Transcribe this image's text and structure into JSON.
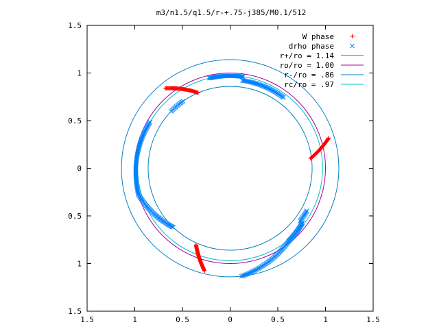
{
  "chart_data": {
    "type": "scatter",
    "title": "m3/n1.5/q1.5/r-+.75-j385/M0.1/512",
    "xlabel": "",
    "ylabel": "",
    "xlim": [
      -1.5,
      1.5
    ],
    "ylim": [
      -1.5,
      1.5
    ],
    "xtick_labels": [
      "1.5",
      "1",
      "0.5",
      "0",
      "0.5",
      "1",
      "1.5"
    ],
    "xtick_values": [
      -1.5,
      -1,
      -0.5,
      0,
      0.5,
      1,
      1.5
    ],
    "ytick_labels": [
      "1.5",
      "1",
      "0.5",
      "0",
      "0.5",
      "1",
      "1.5"
    ],
    "ytick_values": [
      1.5,
      1,
      0.5,
      0,
      -0.5,
      -1,
      -1.5
    ],
    "grid": false,
    "legend_position": "top-right",
    "colors": {
      "w_phase": "#ff0000",
      "drho_phase": "#0080ff",
      "r_plus": "#0080c0",
      "ro": "#a000a0",
      "r_minus": "#0080c0",
      "rc": "#00c0c0"
    },
    "circles": [
      {
        "label": "r+/ro = 1.14",
        "radius": 1.14,
        "color_key": "r_plus"
      },
      {
        "label": "ro/ro = 1.00",
        "radius": 1.0,
        "color_key": "ro"
      },
      {
        "label": "r-/ro = .86",
        "radius": 0.86,
        "color_key": "r_minus"
      },
      {
        "label": "rc/ro = .97",
        "radius": 0.97,
        "color_key": "rc"
      }
    ],
    "series": [
      {
        "name": "W phase",
        "marker": "+",
        "color_key": "w_phase",
        "arcs": [
          {
            "r0": 0.85,
            "r1": 1.08,
            "a0": 7,
            "a1": 17,
            "n": 45
          },
          {
            "r0": 0.86,
            "r1": 1.08,
            "a0": 113,
            "a1": 129,
            "n": 50
          },
          {
            "r0": 0.88,
            "r1": 1.11,
            "a0": 246,
            "a1": 256,
            "n": 45
          }
        ]
      },
      {
        "name": "drho phase",
        "marker": "x",
        "color_key": "drho_phase",
        "arcs": [
          {
            "r0": 0.93,
            "r1": 0.93,
            "a0": 53,
            "a1": 82,
            "n": 45
          },
          {
            "r0": 0.97,
            "r1": 0.97,
            "a0": 82,
            "a1": 103,
            "n": 40
          },
          {
            "r0": 0.86,
            "r1": 0.86,
            "a0": 125,
            "a1": 136,
            "n": 14
          },
          {
            "r0": 0.97,
            "r1": 1.0,
            "a0": 150,
            "a1": 196,
            "n": 70
          },
          {
            "r0": 1.0,
            "r1": 0.86,
            "a0": 196,
            "a1": 226,
            "n": 50
          },
          {
            "r0": 1.14,
            "r1": 0.98,
            "a0": 276,
            "a1": 309,
            "n": 55
          },
          {
            "r0": 0.98,
            "r1": 0.95,
            "a0": 309,
            "a1": 323,
            "n": 30
          },
          {
            "r0": 0.92,
            "r1": 0.92,
            "a0": 323,
            "a1": 331,
            "n": 12
          }
        ]
      }
    ]
  }
}
